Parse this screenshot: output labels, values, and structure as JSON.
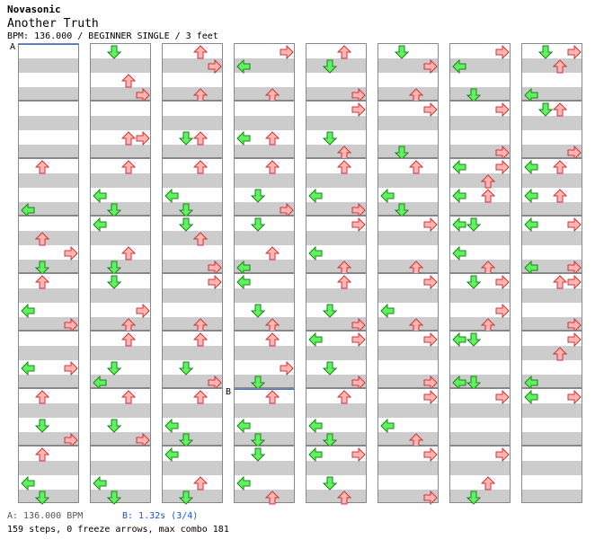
{
  "header": {
    "artist": "Novasonic",
    "title": "Another Truth",
    "meta": "BPM: 136.000 / BEGINNER SINGLE / 3 feet"
  },
  "colors": {
    "up_fill": "#ffb6b6",
    "up_stroke": "#d03030",
    "down_fill": "#66ee66",
    "down_stroke": "#118811"
  },
  "markers": [
    {
      "label": "A",
      "column": 0,
      "measure": 0
    },
    {
      "label": "B",
      "column": 3,
      "measure": 6
    }
  ],
  "columns": [
    [
      [],
      [],
      [
        [
          "U",
          1,
          0
        ],
        [
          "L",
          0,
          3
        ]
      ],
      [
        [
          "U",
          1,
          1
        ],
        [
          "R",
          3,
          2
        ],
        [
          "D",
          1,
          3
        ]
      ],
      [
        [
          "U",
          1,
          0
        ],
        [
          "L",
          0,
          2
        ],
        [
          "R",
          3,
          3
        ]
      ],
      [
        [
          "L",
          0,
          2
        ],
        [
          "R",
          3,
          2
        ]
      ],
      [
        [
          "U",
          1,
          0
        ],
        [
          "D",
          1,
          2
        ],
        [
          "R",
          3,
          3
        ]
      ],
      [
        [
          "U",
          1,
          0
        ],
        [
          "L",
          0,
          2
        ],
        [
          "D",
          1,
          3
        ]
      ]
    ],
    [
      [
        [
          "D",
          1,
          0
        ],
        [
          "U",
          2,
          2
        ],
        [
          "R",
          3,
          3
        ]
      ],
      [
        [
          "U",
          2,
          2
        ],
        [
          "R",
          3,
          2
        ]
      ],
      [
        [
          "U",
          2,
          0
        ],
        [
          "L",
          0,
          2
        ],
        [
          "D",
          1,
          3
        ]
      ],
      [
        [
          "L",
          0,
          0
        ],
        [
          "U",
          2,
          2
        ],
        [
          "D",
          1,
          3
        ]
      ],
      [
        [
          "D",
          1,
          0
        ],
        [
          "R",
          3,
          2
        ],
        [
          "U",
          2,
          3
        ]
      ],
      [
        [
          "U",
          2,
          0
        ],
        [
          "D",
          1,
          2
        ],
        [
          "L",
          0,
          3
        ]
      ],
      [
        [
          "U",
          2,
          0
        ],
        [
          "D",
          1,
          2
        ],
        [
          "R",
          3,
          3
        ]
      ],
      [
        [
          "L",
          0,
          2
        ],
        [
          "D",
          1,
          3
        ]
      ]
    ],
    [
      [
        [
          "U",
          2,
          0
        ],
        [
          "R",
          3,
          1
        ],
        [
          "U",
          2,
          3
        ]
      ],
      [
        [
          "D",
          1,
          2
        ],
        [
          "U",
          2,
          2
        ]
      ],
      [
        [
          "U",
          2,
          0
        ],
        [
          "L",
          0,
          2
        ],
        [
          "D",
          1,
          3
        ]
      ],
      [
        [
          "D",
          1,
          0
        ],
        [
          "U",
          2,
          1
        ],
        [
          "R",
          3,
          3
        ]
      ],
      [
        [
          "R",
          3,
          0
        ],
        [
          "U",
          2,
          3
        ]
      ],
      [
        [
          "U",
          2,
          0
        ],
        [
          "D",
          1,
          2
        ],
        [
          "R",
          3,
          3
        ]
      ],
      [
        [
          "U",
          2,
          0
        ],
        [
          "L",
          0,
          2
        ],
        [
          "D",
          1,
          3
        ]
      ],
      [
        [
          "L",
          0,
          0
        ],
        [
          "U",
          2,
          2
        ],
        [
          "D",
          1,
          3
        ]
      ]
    ],
    [
      [
        [
          "R",
          3,
          0
        ],
        [
          "L",
          0,
          1
        ],
        [
          "U",
          2,
          3
        ]
      ],
      [
        [
          "L",
          0,
          2
        ],
        [
          "U",
          2,
          2
        ]
      ],
      [
        [
          "U",
          2,
          0
        ],
        [
          "D",
          1,
          2
        ],
        [
          "R",
          3,
          3
        ]
      ],
      [
        [
          "D",
          1,
          0
        ],
        [
          "U",
          2,
          2
        ],
        [
          "L",
          0,
          3
        ]
      ],
      [
        [
          "L",
          0,
          0
        ],
        [
          "D",
          1,
          2
        ],
        [
          "U",
          2,
          3
        ]
      ],
      [
        [
          "U",
          2,
          0
        ],
        [
          "R",
          3,
          2
        ],
        [
          "D",
          1,
          3
        ]
      ],
      [
        [
          "U",
          2,
          0
        ],
        [
          "L",
          0,
          2
        ],
        [
          "D",
          1,
          3
        ]
      ],
      [
        [
          "D",
          1,
          0
        ],
        [
          "L",
          0,
          2
        ],
        [
          "U",
          2,
          3
        ]
      ]
    ],
    [
      [
        [
          "U",
          2,
          0
        ],
        [
          "D",
          1,
          1
        ],
        [
          "R",
          3,
          3
        ]
      ],
      [
        [
          "R",
          3,
          0
        ],
        [
          "D",
          1,
          2
        ],
        [
          "U",
          2,
          3
        ]
      ],
      [
        [
          "U",
          2,
          0
        ],
        [
          "L",
          0,
          2
        ],
        [
          "R",
          3,
          3
        ]
      ],
      [
        [
          "R",
          3,
          0
        ],
        [
          "L",
          0,
          2
        ],
        [
          "U",
          2,
          3
        ]
      ],
      [
        [
          "U",
          2,
          0
        ],
        [
          "D",
          1,
          2
        ],
        [
          "R",
          3,
          3
        ]
      ],
      [
        [
          "L",
          0,
          0
        ],
        [
          "R",
          3,
          0
        ],
        [
          "D",
          1,
          2
        ],
        [
          "R",
          3,
          3
        ]
      ],
      [
        [
          "U",
          2,
          0
        ],
        [
          "L",
          0,
          2
        ],
        [
          "D",
          1,
          3
        ]
      ],
      [
        [
          "L",
          0,
          0
        ],
        [
          "R",
          3,
          0
        ],
        [
          "D",
          1,
          2
        ],
        [
          "U",
          2,
          3
        ]
      ]
    ],
    [
      [
        [
          "D",
          1,
          0
        ],
        [
          "R",
          3,
          1
        ],
        [
          "U",
          2,
          3
        ]
      ],
      [
        [
          "R",
          3,
          0
        ],
        [
          "D",
          1,
          3
        ]
      ],
      [
        [
          "U",
          2,
          0
        ],
        [
          "L",
          0,
          2
        ],
        [
          "D",
          1,
          3
        ]
      ],
      [
        [
          "R",
          3,
          0
        ],
        [
          "U",
          2,
          3
        ]
      ],
      [
        [
          "R",
          3,
          0
        ],
        [
          "L",
          0,
          2
        ],
        [
          "U",
          2,
          3
        ]
      ],
      [
        [
          "R",
          3,
          0
        ],
        [
          "R",
          3,
          3
        ]
      ],
      [
        [
          "R",
          3,
          0
        ],
        [
          "L",
          0,
          2
        ],
        [
          "U",
          2,
          3
        ]
      ],
      [
        [
          "R",
          3,
          0
        ],
        [
          "R",
          3,
          3
        ]
      ]
    ],
    [
      [
        [
          "R",
          3,
          0
        ],
        [
          "L",
          0,
          1
        ],
        [
          "D",
          1,
          3
        ]
      ],
      [
        [
          "R",
          3,
          0
        ],
        [
          "R",
          3,
          3
        ]
      ],
      [
        [
          "L",
          0,
          0
        ],
        [
          "R",
          3,
          0
        ],
        [
          "U",
          2,
          1
        ],
        [
          "L",
          0,
          2
        ],
        [
          "U",
          2,
          2
        ]
      ],
      [
        [
          "L",
          0,
          0
        ],
        [
          "D",
          1,
          0
        ],
        [
          "L",
          0,
          2
        ],
        [
          "U",
          2,
          3
        ]
      ],
      [
        [
          "D",
          1,
          0
        ],
        [
          "R",
          3,
          0
        ],
        [
          "R",
          3,
          2
        ],
        [
          "U",
          2,
          3
        ]
      ],
      [
        [
          "L",
          0,
          0
        ],
        [
          "D",
          1,
          0
        ],
        [
          "L",
          0,
          3
        ],
        [
          "D",
          1,
          3
        ]
      ],
      [
        [
          "R",
          3,
          0
        ]
      ],
      [
        [
          "R",
          3,
          0
        ],
        [
          "U",
          2,
          2
        ],
        [
          "D",
          1,
          3
        ]
      ]
    ],
    [
      [
        [
          "D",
          1,
          0
        ],
        [
          "R",
          3,
          0
        ],
        [
          "U",
          2,
          1
        ],
        [
          "L",
          0,
          3
        ]
      ],
      [
        [
          "D",
          1,
          0
        ],
        [
          "U",
          2,
          0
        ],
        [
          "R",
          3,
          3
        ]
      ],
      [
        [
          "L",
          0,
          0
        ],
        [
          "U",
          2,
          0
        ],
        [
          "L",
          0,
          2
        ],
        [
          "U",
          2,
          2
        ]
      ],
      [
        [
          "L",
          0,
          0
        ],
        [
          "R",
          3,
          0
        ],
        [
          "L",
          0,
          3
        ],
        [
          "R",
          3,
          3
        ]
      ],
      [
        [
          "U",
          2,
          0
        ],
        [
          "R",
          3,
          0
        ],
        [
          "R",
          3,
          3
        ]
      ],
      [
        [
          "R",
          3,
          0
        ],
        [
          "U",
          2,
          1
        ],
        [
          "L",
          0,
          3
        ]
      ],
      [
        [
          "L",
          0,
          0
        ],
        [
          "R",
          3,
          0
        ]
      ],
      []
    ]
  ],
  "legend": {
    "a": "A: 136.000 BPM",
    "b": "B: 1.32s (3/4)"
  },
  "stats": "159 steps, 0 freeze arrows, max combo 181"
}
